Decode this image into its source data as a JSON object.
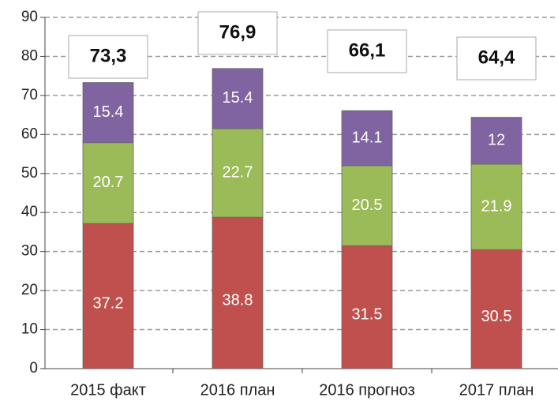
{
  "chart_data": {
    "type": "stacked_bar",
    "categories": [
      "2015 факт",
      "2016 план",
      "2016 прогноз",
      "2017 план"
    ],
    "series": [
      {
        "color": "#c0504d",
        "values": [
          37.2,
          38.8,
          31.5,
          30.5
        ]
      },
      {
        "color": "#9bbb59",
        "values": [
          20.7,
          22.7,
          20.5,
          21.9
        ]
      },
      {
        "color": "#8064a2",
        "values": [
          15.4,
          15.4,
          14.1,
          12
        ]
      }
    ],
    "annotations": [
      "73,3",
      "76,9",
      "66,1",
      "64,4"
    ],
    "ylim": [
      0,
      90
    ],
    "yticks": [
      0,
      10,
      20,
      30,
      40,
      50,
      60,
      70,
      80,
      90
    ],
    "grid": true
  }
}
